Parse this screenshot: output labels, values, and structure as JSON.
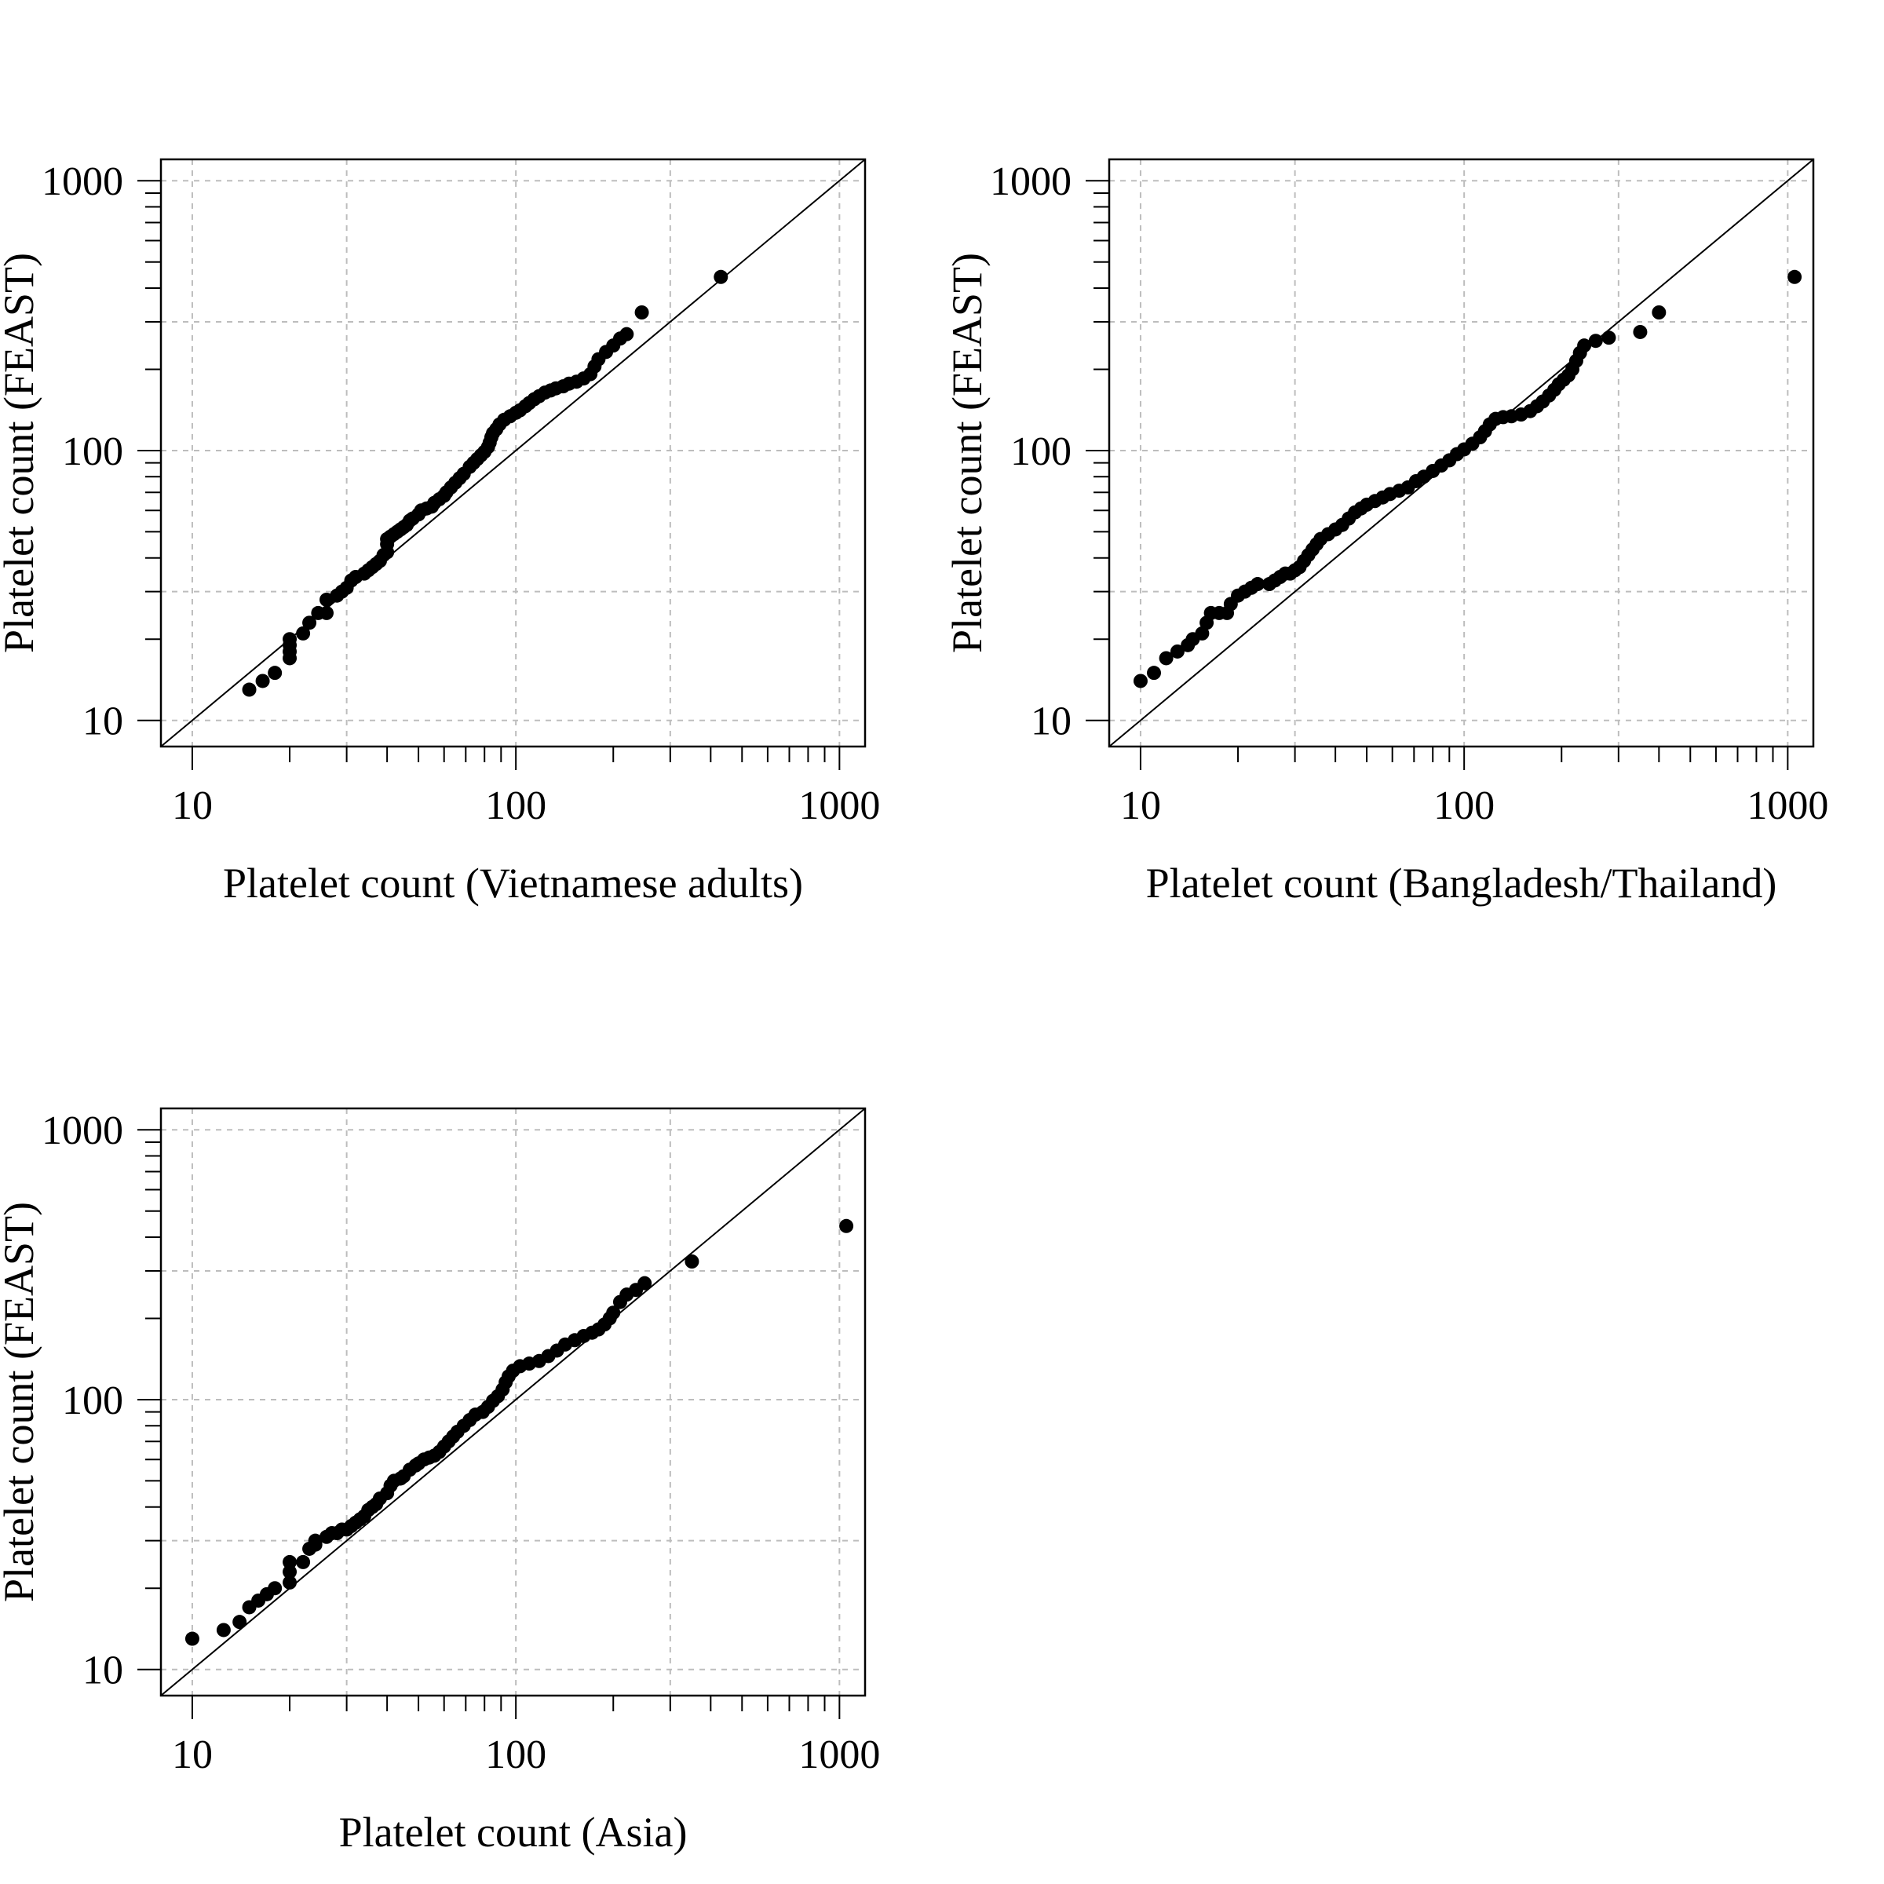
{
  "chart_data": [
    {
      "type": "scatter",
      "title": "",
      "xlabel": "Platelet count (Vietnamese adults)",
      "ylabel": "Platelet count (FEAST)",
      "x_scale": "log",
      "y_scale": "log",
      "xlim": [
        8,
        1200
      ],
      "ylim": [
        8,
        1200
      ],
      "grid": true,
      "x_ticks": [
        "10",
        "100",
        "1000"
      ],
      "y_ticks": [
        "10",
        "100",
        "1000"
      ],
      "reference_line": "y = x",
      "points": [
        [
          15,
          13
        ],
        [
          16.5,
          14
        ],
        [
          18,
          15
        ],
        [
          20,
          17
        ],
        [
          20,
          18
        ],
        [
          20,
          19
        ],
        [
          20,
          20
        ],
        [
          22,
          21
        ],
        [
          23,
          23
        ],
        [
          24.5,
          25
        ],
        [
          26,
          25
        ],
        [
          26,
          28
        ],
        [
          28,
          29
        ],
        [
          29,
          30
        ],
        [
          30,
          31
        ],
        [
          31,
          33
        ],
        [
          32,
          34
        ],
        [
          34,
          35
        ],
        [
          35,
          36
        ],
        [
          36,
          37
        ],
        [
          37,
          38
        ],
        [
          38,
          39
        ],
        [
          39,
          41
        ],
        [
          40,
          42
        ],
        [
          40,
          45
        ],
        [
          40,
          47
        ],
        [
          41,
          48
        ],
        [
          42,
          49
        ],
        [
          43,
          50
        ],
        [
          44,
          51
        ],
        [
          45,
          52
        ],
        [
          46,
          53
        ],
        [
          47,
          55
        ],
        [
          48,
          56
        ],
        [
          50,
          58
        ],
        [
          51,
          60
        ],
        [
          53,
          61
        ],
        [
          55,
          62
        ],
        [
          56,
          64
        ],
        [
          58,
          66
        ],
        [
          60,
          68
        ],
        [
          61,
          70
        ],
        [
          63,
          73
        ],
        [
          65,
          76
        ],
        [
          67,
          79
        ],
        [
          69,
          82
        ],
        [
          72,
          87
        ],
        [
          74,
          90
        ],
        [
          76,
          93
        ],
        [
          78,
          96
        ],
        [
          80,
          99
        ],
        [
          82,
          103
        ],
        [
          83,
          107
        ],
        [
          84,
          112
        ],
        [
          85,
          116
        ],
        [
          87,
          120
        ],
        [
          89,
          125
        ],
        [
          92,
          130
        ],
        [
          96,
          134
        ],
        [
          100,
          138
        ],
        [
          103,
          141
        ],
        [
          107,
          146
        ],
        [
          110,
          150
        ],
        [
          114,
          155
        ],
        [
          118,
          159
        ],
        [
          123,
          164
        ],
        [
          128,
          167
        ],
        [
          133,
          170
        ],
        [
          140,
          173
        ],
        [
          146,
          177
        ],
        [
          154,
          180
        ],
        [
          162,
          185
        ],
        [
          170,
          192
        ],
        [
          175,
          205
        ],
        [
          180,
          218
        ],
        [
          190,
          232
        ],
        [
          200,
          245
        ],
        [
          210,
          260
        ],
        [
          220,
          270
        ],
        [
          245,
          325
        ],
        [
          430,
          440
        ]
      ]
    },
    {
      "type": "scatter",
      "title": "",
      "xlabel": "Platelet count (Bangladesh/Thailand)",
      "ylabel": "Platelet count (FEAST)",
      "x_scale": "log",
      "y_scale": "log",
      "xlim": [
        8,
        1200
      ],
      "ylim": [
        8,
        1200
      ],
      "grid": true,
      "x_ticks": [
        "10",
        "100",
        "1000"
      ],
      "y_ticks": [
        "10",
        "100",
        "1000"
      ],
      "reference_line": "y = x",
      "points": [
        [
          10,
          14
        ],
        [
          11,
          15
        ],
        [
          12,
          17
        ],
        [
          13,
          18
        ],
        [
          14,
          19
        ],
        [
          14.5,
          20
        ],
        [
          15.5,
          21
        ],
        [
          16,
          23
        ],
        [
          16.5,
          25
        ],
        [
          17.5,
          25
        ],
        [
          18.5,
          25
        ],
        [
          19,
          27
        ],
        [
          20,
          29
        ],
        [
          21,
          30
        ],
        [
          22,
          31
        ],
        [
          23,
          32
        ],
        [
          25,
          32
        ],
        [
          26,
          33
        ],
        [
          27,
          34
        ],
        [
          28,
          35
        ],
        [
          29,
          35
        ],
        [
          30,
          36
        ],
        [
          31,
          37
        ],
        [
          32,
          39
        ],
        [
          33,
          41
        ],
        [
          34,
          43
        ],
        [
          35,
          45
        ],
        [
          36,
          47
        ],
        [
          38,
          49
        ],
        [
          40,
          51
        ],
        [
          42,
          53
        ],
        [
          44,
          56
        ],
        [
          46,
          59
        ],
        [
          48,
          61
        ],
        [
          50,
          63
        ],
        [
          53,
          65
        ],
        [
          56,
          67
        ],
        [
          59,
          69
        ],
        [
          63,
          71
        ],
        [
          67,
          73
        ],
        [
          71,
          77
        ],
        [
          75,
          80
        ],
        [
          80,
          84
        ],
        [
          85,
          88
        ],
        [
          90,
          92
        ],
        [
          95,
          97
        ],
        [
          100,
          101
        ],
        [
          106,
          106
        ],
        [
          112,
          112
        ],
        [
          116,
          118
        ],
        [
          120,
          125
        ],
        [
          125,
          131
        ],
        [
          132,
          133
        ],
        [
          140,
          134
        ],
        [
          150,
          136
        ],
        [
          160,
          140
        ],
        [
          168,
          146
        ],
        [
          175,
          152
        ],
        [
          183,
          160
        ],
        [
          190,
          168
        ],
        [
          196,
          176
        ],
        [
          203,
          183
        ],
        [
          210,
          190
        ],
        [
          216,
          200
        ],
        [
          222,
          215
        ],
        [
          228,
          230
        ],
        [
          235,
          245
        ],
        [
          255,
          255
        ],
        [
          280,
          262
        ],
        [
          350,
          275
        ],
        [
          400,
          325
        ],
        [
          1050,
          440
        ]
      ]
    },
    {
      "type": "scatter",
      "title": "",
      "xlabel": "Platelet count (Asia)",
      "ylabel": "Platelet count (FEAST)",
      "x_scale": "log",
      "y_scale": "log",
      "xlim": [
        8,
        1200
      ],
      "ylim": [
        8,
        1200
      ],
      "grid": true,
      "x_ticks": [
        "10",
        "100",
        "1000"
      ],
      "y_ticks": [
        "10",
        "100",
        "1000"
      ],
      "reference_line": "y = x",
      "points": [
        [
          10,
          13
        ],
        [
          12.5,
          14
        ],
        [
          14,
          15
        ],
        [
          15,
          17
        ],
        [
          16,
          18
        ],
        [
          17,
          19
        ],
        [
          18,
          20
        ],
        [
          20,
          21
        ],
        [
          20,
          23
        ],
        [
          20,
          25
        ],
        [
          22,
          25
        ],
        [
          23,
          28
        ],
        [
          24,
          29
        ],
        [
          24,
          30
        ],
        [
          26,
          31
        ],
        [
          27,
          32
        ],
        [
          28,
          32
        ],
        [
          29,
          33
        ],
        [
          30,
          33
        ],
        [
          31,
          34
        ],
        [
          32,
          35
        ],
        [
          33,
          36
        ],
        [
          34,
          37
        ],
        [
          35,
          39
        ],
        [
          36,
          40
        ],
        [
          37,
          41
        ],
        [
          38,
          43
        ],
        [
          40,
          45
        ],
        [
          41,
          48
        ],
        [
          42,
          50
        ],
        [
          44,
          51
        ],
        [
          45,
          52
        ],
        [
          47,
          55
        ],
        [
          49,
          57
        ],
        [
          50,
          58
        ],
        [
          52,
          60
        ],
        [
          54,
          61
        ],
        [
          56,
          62
        ],
        [
          58,
          64
        ],
        [
          60,
          67
        ],
        [
          62,
          70
        ],
        [
          64,
          73
        ],
        [
          66,
          76
        ],
        [
          69,
          80
        ],
        [
          72,
          84
        ],
        [
          75,
          88
        ],
        [
          79,
          90
        ],
        [
          82,
          94
        ],
        [
          85,
          99
        ],
        [
          88,
          103
        ],
        [
          91,
          109
        ],
        [
          93,
          116
        ],
        [
          95,
          122
        ],
        [
          98,
          128
        ],
        [
          103,
          133
        ],
        [
          110,
          136
        ],
        [
          118,
          139
        ],
        [
          126,
          145
        ],
        [
          134,
          152
        ],
        [
          142,
          160
        ],
        [
          152,
          166
        ],
        [
          162,
          172
        ],
        [
          172,
          177
        ],
        [
          180,
          182
        ],
        [
          188,
          190
        ],
        [
          195,
          200
        ],
        [
          200,
          210
        ],
        [
          210,
          230
        ],
        [
          220,
          245
        ],
        [
          235,
          255
        ],
        [
          250,
          270
        ],
        [
          350,
          325
        ],
        [
          1050,
          440
        ]
      ]
    }
  ]
}
